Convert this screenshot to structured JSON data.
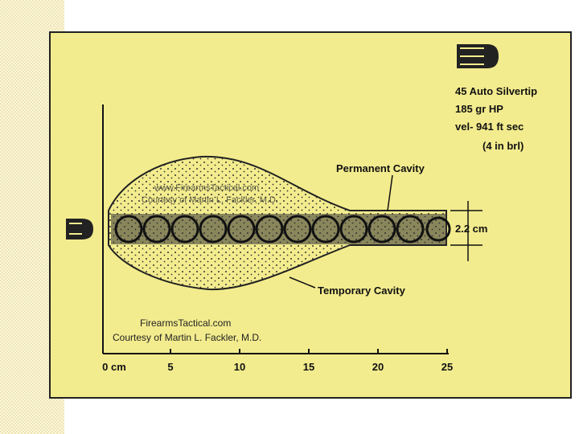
{
  "bullet": {
    "caliber": "45 Auto Silvertip",
    "weight": "185 gr HP",
    "velocity": "vel- 941 ft sec",
    "barrel": "(4 in brl)"
  },
  "labels": {
    "permanent": "Permanent Cavity",
    "temporary": "Temporary Cavity",
    "width": "2.2 cm"
  },
  "watermark": {
    "site": "www.FirearmsTactical.com",
    "credit": "Courtesy of Martin L. Fackler, M.D."
  },
  "credit": {
    "site": "FirearmsTactical.com",
    "author": "Courtesy of Martin L. Fackler, M.D."
  },
  "scale": {
    "labels": [
      "0 cm",
      "5",
      "10",
      "15",
      "20",
      "25"
    ]
  }
}
